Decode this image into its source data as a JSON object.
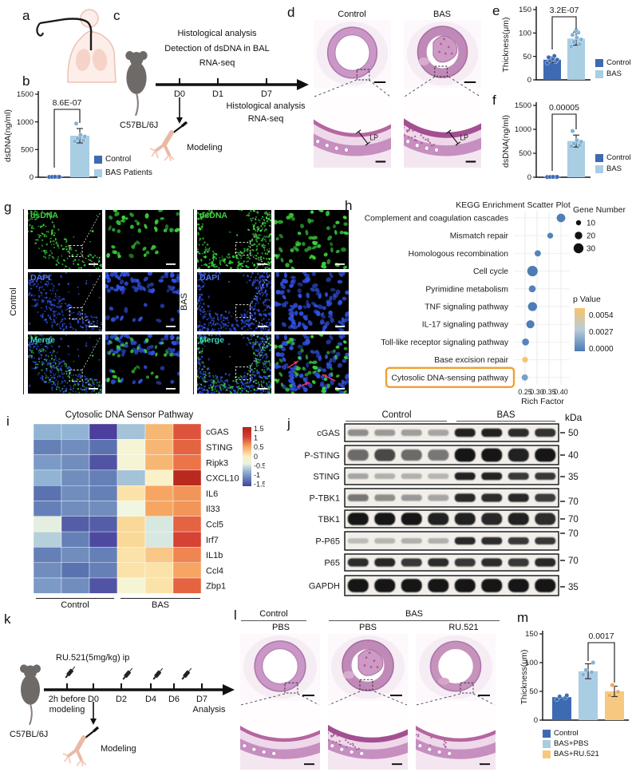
{
  "letters": {
    "a": "a",
    "b": "b",
    "c": "c",
    "d": "d",
    "e": "e",
    "f": "f",
    "g": "g",
    "h": "h",
    "i": "i",
    "j": "j",
    "k": "k",
    "l": "l",
    "m": "m"
  },
  "colors": {
    "control": "#3e6ab2",
    "bas": "#a9cde3",
    "bas_dot": "#7fb3d7",
    "ru521": "#f7c87f",
    "ru_dot": "#f0a95a",
    "highlight_box": "#f0a030",
    "fluoro_green": "#3bd43b",
    "fluoro_blue": "#3050e0",
    "label_green": "#3fd23f",
    "label_blue": "#4f6fe0",
    "label_cyan": "#3fd0c0",
    "arrow_red": "#e0336e"
  },
  "c": {
    "line1": "Histological analysis",
    "line2": "Detection of dsDNA in BAL",
    "line3": "RNA-seq",
    "d0": "D0",
    "d1": "D1",
    "d7": "D7",
    "below1": "Histological analysis",
    "below2": "RNA-seq",
    "mouse": "C57BL/6J",
    "modeling": "Modeling"
  },
  "d": {
    "col1": "Control",
    "col2": "BAS",
    "lp": "LP"
  },
  "b": {
    "legend": [
      "Control",
      "BAS Patients"
    ]
  },
  "e": {
    "legend": [
      "Control",
      "BAS"
    ]
  },
  "f": {
    "legend": [
      "Control",
      "BAS"
    ]
  },
  "g": {
    "rows": [
      "dsDNA",
      "DAPI",
      "Merge"
    ],
    "group1": "Control",
    "group2": "BAS"
  },
  "i": {
    "title": "Cytosolic DNA Sensor Pathway",
    "group1": "Control",
    "group2": "BAS"
  },
  "j": {
    "group1": "Control",
    "group2": "BAS",
    "kda": "kDa"
  },
  "k": {
    "treatment": "RU.521(5mg/kg) ip",
    "t0a": "2h before",
    "t0b": "modeling",
    "d0": "D0",
    "d2": "D2",
    "d4": "D4",
    "d6": "D6",
    "d7": "D7",
    "analysis": "Analysis",
    "mouse": "C57BL/6J",
    "modeling": "Modeling"
  },
  "l": {
    "group1": "Control",
    "group2": "BAS",
    "sub": [
      "PBS",
      "PBS",
      "RU.521"
    ]
  },
  "m": {
    "legend": [
      "Control",
      "BAS+PBS",
      "BAS+RU.521"
    ]
  },
  "chart_data": [
    {
      "id": "b",
      "type": "bar",
      "ylabel": "dsDNA(ng/ml)",
      "ymax": 1500,
      "yticks": [
        0,
        500,
        1000,
        1500
      ],
      "categories": [
        "Control",
        "BAS Patients"
      ],
      "p_value": "8.6E-07",
      "bars": [
        {
          "label": "Control",
          "value": 8,
          "dots": [
            5,
            5,
            6,
            7,
            8
          ]
        },
        {
          "label": "BAS Patients",
          "value": 750,
          "err": 130,
          "dots": [
            650,
            670,
            700,
            735,
            765,
            970
          ]
        }
      ]
    },
    {
      "id": "e",
      "type": "bar",
      "ylabel": "Thickness(μm)",
      "ymax": 150,
      "yticks": [
        0,
        50,
        100,
        150
      ],
      "categories": [
        "Control",
        "BAS"
      ],
      "p_value": "3.2E-07",
      "bars": [
        {
          "label": "Control",
          "value": 43,
          "err": 6,
          "dots": [
            36,
            39,
            41,
            43,
            45,
            48,
            51
          ]
        },
        {
          "label": "BAS",
          "value": 88,
          "err": 14,
          "dots": [
            71,
            76,
            81,
            86,
            90,
            96,
            101,
            106
          ]
        }
      ]
    },
    {
      "id": "f",
      "type": "bar",
      "ylabel": "dsDNA(ng/ml)",
      "ymax": 1500,
      "yticks": [
        0,
        500,
        1000,
        1500
      ],
      "categories": [
        "Control",
        "BAS"
      ],
      "p_value": "0.00005",
      "bars": [
        {
          "label": "Control",
          "value": 8,
          "dots": [
            4,
            5,
            6,
            7,
            8
          ]
        },
        {
          "label": "BAS",
          "value": 755,
          "err": 125,
          "dots": [
            645,
            670,
            705,
            740,
            770,
            965
          ]
        }
      ]
    },
    {
      "id": "m",
      "type": "bar",
      "ylabel": "Thickness(μm)",
      "ymax": 150,
      "yticks": [
        0,
        50,
        100,
        150
      ],
      "categories": [
        "Control",
        "BAS+PBS",
        "BAS+RU.521"
      ],
      "p_value": "0.0017",
      "bars": [
        {
          "label": "Control",
          "value": 40,
          "dots": [
            36,
            39,
            41,
            43
          ]
        },
        {
          "label": "BAS+PBS",
          "value": 85,
          "err": 13,
          "dots": [
            79,
            83,
            87,
            100
          ]
        },
        {
          "label": "BAS+RU.521",
          "value": 50,
          "err": 9,
          "dots": [
            43,
            49,
            61
          ]
        }
      ]
    },
    {
      "id": "kegg",
      "type": "scatter",
      "title": "KEGG Enrichment Scatter Plot",
      "xlabel": "Rich Factor",
      "xticks": [
        "0.25",
        "0.30",
        "0.35",
        "0.40"
      ],
      "size_legend": {
        "title": "Gene Number",
        "values": [
          "10",
          "20",
          "30"
        ]
      },
      "color_legend": {
        "title": "p Value",
        "ticks": [
          "0.0054",
          "0.0027",
          "0.0000"
        ]
      },
      "highlight": "Cytosolic DNA-sensing pathway",
      "points": [
        {
          "pathway": "Complement and coagulation cascades",
          "rich_factor": 0.4,
          "gene_number": 22,
          "p": 0.0002
        },
        {
          "pathway": "Mismatch repair",
          "rich_factor": 0.355,
          "gene_number": 10,
          "p": 0.0003
        },
        {
          "pathway": "Homologous recombination",
          "rich_factor": 0.303,
          "gene_number": 12,
          "p": 0.0004
        },
        {
          "pathway": "Cell cycle",
          "rich_factor": 0.281,
          "gene_number": 30,
          "p": 0.0001
        },
        {
          "pathway": "Pyrimidine metabolism",
          "rich_factor": 0.28,
          "gene_number": 15,
          "p": 0.0003
        },
        {
          "pathway": "TNF signaling pathway",
          "rich_factor": 0.281,
          "gene_number": 24,
          "p": 0.0001
        },
        {
          "pathway": "IL-17 signaling pathway",
          "rich_factor": 0.272,
          "gene_number": 20,
          "p": 0.0002
        },
        {
          "pathway": "Toll-like receptor signaling pathway",
          "rich_factor": 0.252,
          "gene_number": 15,
          "p": 0.0004
        },
        {
          "pathway": "Base excision repair",
          "rich_factor": 0.25,
          "gene_number": 10,
          "p": 0.0054
        },
        {
          "pathway": "Cytosolic DNA-sensing pathway",
          "rich_factor": 0.249,
          "gene_number": 12,
          "p": 0.0015
        }
      ]
    },
    {
      "id": "heatmap",
      "type": "heatmap",
      "title": "Cytosolic DNA Sensor Pathway",
      "columns": [
        "Control",
        "Control",
        "Control",
        "BAS",
        "BAS",
        "BAS"
      ],
      "genes": [
        "cGAS",
        "STING",
        "Ripk3",
        "CXCL10",
        "IL6",
        "Il33",
        "Ccl5",
        "Irf7",
        "IL1b",
        "Ccl4",
        "Zbp1"
      ],
      "scale_ticks": [
        "1.5",
        "1",
        "0.5",
        "0",
        "-0.5",
        "-1",
        "-1.5"
      ],
      "values": [
        [
          -0.5,
          -0.5,
          -1.5,
          -0.4,
          0.8,
          1.4
        ],
        [
          -0.9,
          -0.8,
          -1.0,
          0.2,
          0.8,
          1.3
        ],
        [
          -0.7,
          -0.8,
          -1.3,
          0.2,
          0.8,
          1.2
        ],
        [
          -0.5,
          -0.8,
          -0.9,
          -0.4,
          0.3,
          1.7
        ],
        [
          -1.0,
          -0.8,
          -0.9,
          0.5,
          0.9,
          1.0
        ],
        [
          -0.9,
          -0.8,
          -0.8,
          0.1,
          0.9,
          1.0
        ],
        [
          0.0,
          -1.2,
          -1.2,
          0.6,
          -0.1,
          1.3
        ],
        [
          -0.3,
          -0.9,
          -1.4,
          0.6,
          -0.1,
          1.5
        ],
        [
          -0.9,
          -0.8,
          -0.9,
          0.5,
          0.7,
          1.1
        ],
        [
          -0.8,
          -1.0,
          -0.9,
          0.5,
          0.5,
          0.9
        ],
        [
          -0.7,
          -0.8,
          -1.3,
          0.2,
          0.5,
          1.3
        ]
      ]
    },
    {
      "id": "blots",
      "type": "table",
      "groups": [
        "Control",
        "BAS"
      ],
      "unit": "kDa",
      "rows": [
        {
          "protein": "cGAS",
          "kda": "50",
          "bandH": 9,
          "intensities": [
            0.45,
            0.4,
            0.38,
            0.35,
            0.95,
            0.95,
            0.9,
            0.88
          ]
        },
        {
          "protein": "P-STING",
          "kda": "40",
          "bandH": 14,
          "intensities": [
            0.6,
            0.75,
            0.6,
            0.55,
            1,
            1,
            0.95,
            1
          ]
        },
        {
          "protein": "STING",
          "kda": "35",
          "bandH": 8,
          "intensities": [
            0.35,
            0.3,
            0.3,
            0.28,
            0.95,
            0.95,
            0.85,
            0.82
          ]
        },
        {
          "protein": "P-TBK1",
          "kda": "70",
          "bandH": 9,
          "intensities": [
            0.55,
            0.45,
            0.4,
            0.35,
            0.92,
            0.9,
            0.92,
            0.8
          ]
        },
        {
          "protein": "TBK1",
          "kda": "70",
          "bandH": 13,
          "intensities": [
            1,
            1,
            1,
            0.95,
            0.95,
            0.92,
            0.95,
            0.9
          ]
        },
        {
          "protein": "P-P65",
          "kda": "70",
          "bandH": 8,
          "intensities": [
            0.22,
            0.28,
            0.3,
            0.3,
            0.92,
            0.9,
            0.85,
            0.82
          ]
        },
        {
          "protein": "P65",
          "kda": "70",
          "bandH": 9,
          "intensities": [
            0.9,
            0.92,
            0.85,
            0.9,
            0.85,
            0.9,
            0.85,
            0.92
          ]
        },
        {
          "protein": "GAPDH",
          "kda": "35",
          "bandH": 14,
          "intensities": [
            1,
            1,
            1,
            1,
            1,
            1,
            1,
            1
          ]
        }
      ]
    }
  ]
}
